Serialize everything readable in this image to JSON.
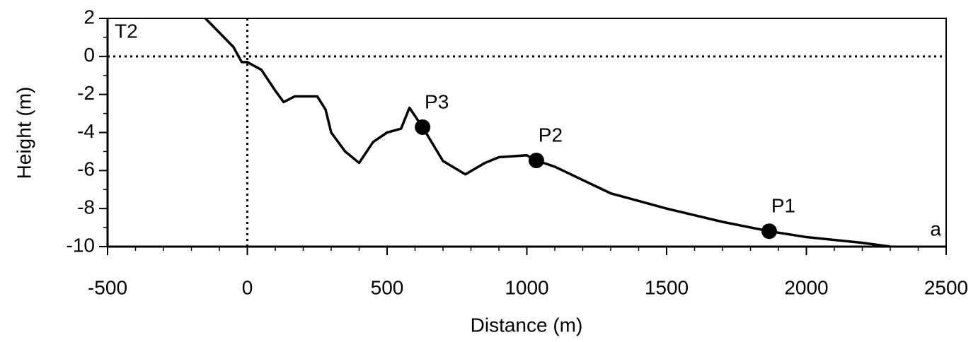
{
  "chart_data": {
    "type": "line",
    "xlabel": "Distance (m)",
    "ylabel": "Height (m)",
    "annotations": [
      "T2",
      "a"
    ],
    "xlim": [
      -500,
      2500
    ],
    "xticks": [
      -500,
      0,
      500,
      1000,
      1500,
      2000,
      2500
    ],
    "xminor_step": 100,
    "ylim": [
      -10,
      2
    ],
    "yticks": [
      -10,
      -8,
      -6,
      -4,
      -2,
      0,
      2
    ],
    "yminor_step": 1,
    "hlines": [
      0
    ],
    "vlines": [
      0
    ],
    "color": "#000000",
    "x": [
      -150,
      -50,
      -20,
      0,
      50,
      100,
      130,
      170,
      250,
      280,
      300,
      350,
      400,
      450,
      500,
      550,
      580,
      627,
      700,
      780,
      850,
      900,
      1000,
      1034,
      1100,
      1200,
      1300,
      1500,
      1700,
      1867,
      2000,
      2200,
      2300
    ],
    "values": [
      2,
      0.5,
      -0.3,
      -0.3,
      -0.7,
      -1.8,
      -2.4,
      -2.1,
      -2.1,
      -2.8,
      -4,
      -5,
      -5.6,
      -4.5,
      -4,
      -3.8,
      -2.7,
      -3.72,
      -5.5,
      -6.2,
      -5.6,
      -5.3,
      -5.2,
      -5.47,
      -5.8,
      -6.5,
      -7.2,
      -8,
      -8.7,
      -9.19,
      -9.5,
      -9.8,
      -10
    ],
    "points": [
      {
        "label": "P3",
        "x": 627,
        "y": -3.72
      },
      {
        "label": "P2",
        "x": 1034,
        "y": -5.47
      },
      {
        "label": "P1",
        "x": 1867,
        "y": -9.19
      }
    ]
  }
}
